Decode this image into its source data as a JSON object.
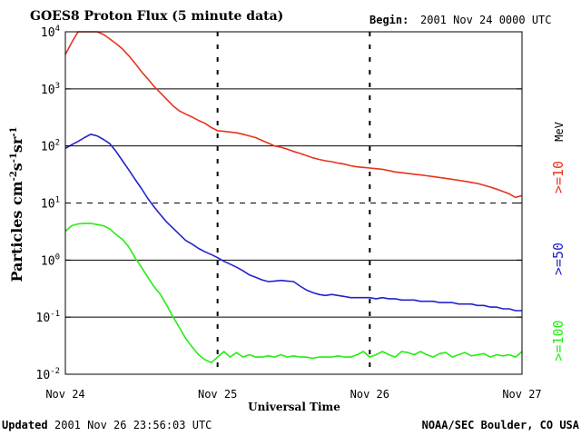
{
  "chart_data": {
    "type": "line",
    "title": "GOES8 Proton Flux (5 minute data)",
    "begin_label": "Begin:",
    "begin_value": "2001 Nov 24 0000 UTC",
    "xlabel": "Universal Time",
    "ylabel": {
      "prefix": "Particles cm",
      "exp1": "-2",
      "mid1": "s",
      "exp2": "-1",
      "mid2": "sr",
      "exp3": "-1"
    },
    "y_scale": "log",
    "ylim": [
      0.01,
      10000
    ],
    "y_ticks": [
      {
        "value": 10000,
        "base": "10",
        "exp": "4"
      },
      {
        "value": 1000,
        "base": "10",
        "exp": "3"
      },
      {
        "value": 100,
        "base": "10",
        "exp": "2"
      },
      {
        "value": 10,
        "base": "10",
        "exp": "1"
      },
      {
        "value": 1,
        "base": "10",
        "exp": "0"
      },
      {
        "value": 0.1,
        "base": "10",
        "exp": "-1"
      },
      {
        "value": 0.01,
        "base": "10",
        "exp": "-2"
      }
    ],
    "xlim": [
      0,
      72
    ],
    "x_unit": "hours since Nov 24 0000 UTC",
    "x_ticks": [
      {
        "value": 0,
        "label": "Nov 24"
      },
      {
        "value": 24,
        "label": "Nov 25"
      },
      {
        "value": 48,
        "label": "Nov 26"
      },
      {
        "value": 72,
        "label": "Nov 27"
      }
    ],
    "grid": "horizontal solid at 1000, 100, 1, 0.1; dashed at 10; dashed vertical at day boundaries",
    "series": [
      {
        "name": ">=10",
        "color": "#e8331c",
        "x": [
          0,
          1,
          2,
          3,
          4,
          5,
          6,
          7,
          8,
          9,
          10,
          11,
          12,
          13,
          14,
          15,
          16,
          17,
          18,
          19,
          20,
          21,
          22,
          23,
          24,
          25,
          26,
          27,
          28,
          29,
          30,
          31,
          32,
          33,
          34,
          35,
          36,
          37,
          38,
          39,
          40,
          41,
          42,
          43,
          44,
          45,
          46,
          47,
          48,
          49,
          50,
          51,
          52,
          53,
          54,
          55,
          56,
          57,
          58,
          59,
          60,
          61,
          62,
          63,
          64,
          65,
          66,
          67,
          68,
          69,
          70,
          71,
          72
        ],
        "y": [
          4000,
          6500,
          10000,
          13000,
          12000,
          10500,
          9000,
          7500,
          6200,
          5000,
          3800,
          2800,
          2000,
          1500,
          1100,
          850,
          650,
          500,
          410,
          360,
          320,
          280,
          250,
          210,
          185,
          180,
          175,
          170,
          160,
          150,
          140,
          125,
          112,
          100,
          95,
          88,
          80,
          74,
          68,
          62,
          58,
          55,
          53,
          50,
          48,
          45,
          43,
          42,
          41,
          40,
          39,
          37,
          35,
          34,
          33,
          32,
          31,
          30,
          29,
          28,
          27,
          26,
          25,
          24,
          23,
          22,
          20.5,
          19,
          17.5,
          16,
          14.5,
          12.5,
          13.5
        ]
      },
      {
        "name": ">=50",
        "color": "#2222cc",
        "x": [
          0,
          1,
          2,
          3,
          4,
          5,
          6,
          7,
          8,
          9,
          10,
          11,
          12,
          13,
          14,
          15,
          16,
          17,
          18,
          19,
          20,
          21,
          22,
          23,
          24,
          25,
          26,
          27,
          28,
          29,
          30,
          31,
          32,
          33,
          34,
          35,
          36,
          37,
          38,
          39,
          40,
          41,
          42,
          43,
          44,
          45,
          46,
          47,
          48,
          49,
          50,
          51,
          52,
          53,
          54,
          55,
          56,
          57,
          58,
          59,
          60,
          61,
          62,
          63,
          64,
          65,
          66,
          67,
          68,
          69,
          70,
          71,
          72
        ],
        "y": [
          90,
          105,
          120,
          140,
          160,
          150,
          130,
          110,
          80,
          55,
          38,
          26,
          18,
          12,
          8.5,
          6.2,
          4.6,
          3.6,
          2.8,
          2.2,
          1.9,
          1.6,
          1.4,
          1.25,
          1.1,
          0.95,
          0.85,
          0.75,
          0.65,
          0.55,
          0.5,
          0.45,
          0.42,
          0.43,
          0.44,
          0.43,
          0.42,
          0.35,
          0.3,
          0.27,
          0.25,
          0.24,
          0.25,
          0.24,
          0.23,
          0.22,
          0.22,
          0.22,
          0.22,
          0.21,
          0.22,
          0.21,
          0.21,
          0.2,
          0.2,
          0.2,
          0.19,
          0.19,
          0.19,
          0.18,
          0.18,
          0.18,
          0.17,
          0.17,
          0.17,
          0.16,
          0.16,
          0.15,
          0.15,
          0.14,
          0.14,
          0.13,
          0.13
        ]
      },
      {
        "name": ">=100",
        "color": "#22ee11",
        "x": [
          0,
          1,
          2,
          3,
          4,
          5,
          6,
          7,
          8,
          9,
          10,
          11,
          12,
          13,
          14,
          15,
          16,
          17,
          18,
          19,
          20,
          21,
          22,
          23,
          24,
          25,
          26,
          27,
          28,
          29,
          30,
          31,
          32,
          33,
          34,
          35,
          36,
          37,
          38,
          39,
          40,
          41,
          42,
          43,
          44,
          45,
          46,
          47,
          48,
          49,
          50,
          51,
          52,
          53,
          54,
          55,
          56,
          57,
          58,
          59,
          60,
          61,
          62,
          63,
          64,
          65,
          66,
          67,
          68,
          69,
          70,
          71,
          72
        ],
        "y": [
          3.2,
          4.0,
          4.3,
          4.4,
          4.4,
          4.2,
          4.0,
          3.5,
          2.8,
          2.3,
          1.7,
          1.1,
          0.75,
          0.5,
          0.34,
          0.25,
          0.16,
          0.1,
          0.065,
          0.042,
          0.03,
          0.022,
          0.018,
          0.016,
          0.02,
          0.025,
          0.02,
          0.024,
          0.02,
          0.022,
          0.02,
          0.02,
          0.021,
          0.02,
          0.022,
          0.02,
          0.021,
          0.02,
          0.02,
          0.019,
          0.02,
          0.02,
          0.02,
          0.021,
          0.02,
          0.02,
          0.022,
          0.025,
          0.02,
          0.022,
          0.025,
          0.022,
          0.02,
          0.025,
          0.024,
          0.022,
          0.025,
          0.022,
          0.02,
          0.023,
          0.024,
          0.02,
          0.022,
          0.024,
          0.021,
          0.022,
          0.023,
          0.02,
          0.022,
          0.021,
          0.022,
          0.02,
          0.025
        ]
      }
    ],
    "legend_labels": [
      {
        "text": ">=10",
        "color": "#e8331c"
      },
      {
        "text": ">=50",
        "color": "#2222cc"
      },
      {
        "text": ">=100",
        "color": "#22ee11"
      }
    ],
    "legend_unit": "MeV",
    "legend_placement": "right"
  },
  "footer": {
    "updated_label": "Updated",
    "updated_value": "2001 Nov 26 23:56:03 UTC",
    "source": "NOAA/SEC Boulder, CO USA"
  }
}
